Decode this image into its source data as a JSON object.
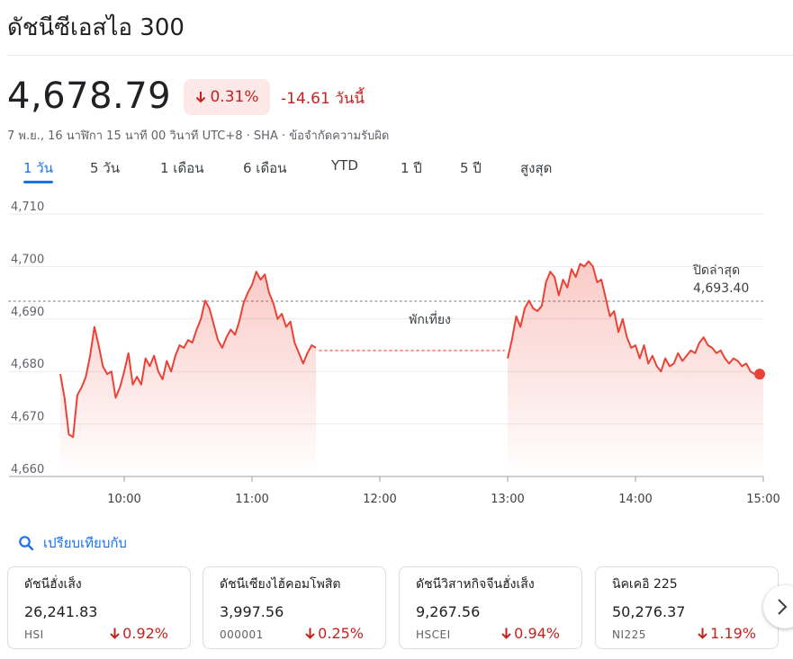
{
  "title": "ดัชนีซีเอสไอ 300",
  "quote": {
    "price": "4,678.79",
    "pct": "0.31%",
    "change": "-14.61 วันนี้",
    "meta": "7 พ.ย., 16 นาฬิกา 15 นาที 00 วินาที UTC+8 · SHA · ข้อจำกัดความรับผิด",
    "down_color": "#c5221f"
  },
  "tabs": [
    {
      "label": "1 วัน",
      "active": true
    },
    {
      "label": "5 วัน"
    },
    {
      "label": "1 เดือน"
    },
    {
      "label": "6 เดือน"
    },
    {
      "label": "YTD"
    },
    {
      "label": "1 ปี"
    },
    {
      "label": "5 ปี"
    },
    {
      "label": "สูงสุด"
    }
  ],
  "chart_data": {
    "type": "line",
    "ylim": [
      4660,
      4710
    ],
    "y_ticks": [
      "4,710",
      "4,700",
      "4,690",
      "4,680",
      "4,670",
      "4,660"
    ],
    "x_ticks": [
      "10:00",
      "11:00",
      "12:00",
      "13:00",
      "14:00",
      "15:00"
    ],
    "x_range": [
      "09:30",
      "15:00"
    ],
    "grid": true,
    "line_color": "#ea4335",
    "previous_close": {
      "label": "ปิดล่าสุด",
      "value_label": "4,693.40",
      "value": 4693.4
    },
    "lunch_break": {
      "label": "พักเที่ยง",
      "from": "11:30",
      "to": "13:00",
      "level": 4684.0
    },
    "series": [
      {
        "name": "ซีเอสไอ 300",
        "points": [
          [
            "09:30",
            4679.5
          ],
          [
            "09:32",
            4675.0
          ],
          [
            "09:34",
            4668.0
          ],
          [
            "09:36",
            4667.5
          ],
          [
            "09:38",
            4675.5
          ],
          [
            "09:40",
            4677.0
          ],
          [
            "09:42",
            4679.0
          ],
          [
            "09:44",
            4683.0
          ],
          [
            "09:46",
            4688.5
          ],
          [
            "09:48",
            4685.0
          ],
          [
            "09:50",
            4681.0
          ],
          [
            "09:52",
            4679.5
          ],
          [
            "09:54",
            4680.0
          ],
          [
            "09:56",
            4675.0
          ],
          [
            "09:58",
            4677.0
          ],
          [
            "10:00",
            4680.0
          ],
          [
            "10:02",
            4683.5
          ],
          [
            "10:04",
            4677.5
          ],
          [
            "10:06",
            4679.0
          ],
          [
            "10:08",
            4677.5
          ],
          [
            "10:10",
            4682.5
          ],
          [
            "10:12",
            4681.0
          ],
          [
            "10:14",
            4683.0
          ],
          [
            "10:16",
            4680.0
          ],
          [
            "10:18",
            4678.5
          ],
          [
            "10:20",
            4682.0
          ],
          [
            "10:22",
            4680.0
          ],
          [
            "10:24",
            4683.0
          ],
          [
            "10:26",
            4685.0
          ],
          [
            "10:28",
            4684.5
          ],
          [
            "10:30",
            4686.0
          ],
          [
            "10:32",
            4685.5
          ],
          [
            "10:34",
            4688.0
          ],
          [
            "10:36",
            4690.0
          ],
          [
            "10:38",
            4693.5
          ],
          [
            "10:40",
            4692.0
          ],
          [
            "10:42",
            4689.0
          ],
          [
            "10:44",
            4686.0
          ],
          [
            "10:46",
            4684.5
          ],
          [
            "10:48",
            4686.5
          ],
          [
            "10:50",
            4688.0
          ],
          [
            "10:52",
            4687.0
          ],
          [
            "10:54",
            4689.5
          ],
          [
            "10:56",
            4693.0
          ],
          [
            "10:58",
            4695.0
          ],
          [
            "11:00",
            4696.5
          ],
          [
            "11:02",
            4699.0
          ],
          [
            "11:04",
            4697.5
          ],
          [
            "11:06",
            4698.5
          ],
          [
            "11:08",
            4695.0
          ],
          [
            "11:10",
            4693.0
          ],
          [
            "11:12",
            4690.0
          ],
          [
            "11:14",
            4691.0
          ],
          [
            "11:16",
            4688.5
          ],
          [
            "11:18",
            4689.5
          ],
          [
            "11:20",
            4685.5
          ],
          [
            "11:22",
            4683.5
          ],
          [
            "11:24",
            4681.5
          ],
          [
            "11:26",
            4683.5
          ],
          [
            "11:28",
            4685.0
          ],
          [
            "11:30",
            4684.5
          ],
          [
            "13:00",
            4682.5
          ],
          [
            "13:02",
            4686.0
          ],
          [
            "13:04",
            4690.5
          ],
          [
            "13:06",
            4688.5
          ],
          [
            "13:08",
            4692.0
          ],
          [
            "13:10",
            4693.5
          ],
          [
            "13:12",
            4692.0
          ],
          [
            "13:14",
            4691.5
          ],
          [
            "13:16",
            4692.5
          ],
          [
            "13:18",
            4697.0
          ],
          [
            "13:20",
            4699.0
          ],
          [
            "13:22",
            4698.0
          ],
          [
            "13:24",
            4694.5
          ],
          [
            "13:26",
            4697.5
          ],
          [
            "13:28",
            4696.0
          ],
          [
            "13:30",
            4699.5
          ],
          [
            "13:32",
            4698.0
          ],
          [
            "13:34",
            4700.5
          ],
          [
            "13:36",
            4700.0
          ],
          [
            "13:38",
            4701.0
          ],
          [
            "13:40",
            4700.0
          ],
          [
            "13:42",
            4697.0
          ],
          [
            "13:44",
            4697.5
          ],
          [
            "13:46",
            4694.0
          ],
          [
            "13:48",
            4690.5
          ],
          [
            "13:50",
            4691.5
          ],
          [
            "13:52",
            4687.5
          ],
          [
            "13:54",
            4690.0
          ],
          [
            "13:56",
            4686.5
          ],
          [
            "13:58",
            4684.5
          ],
          [
            "14:00",
            4685.0
          ],
          [
            "14:02",
            4682.5
          ],
          [
            "14:04",
            4685.0
          ],
          [
            "14:06",
            4681.5
          ],
          [
            "14:08",
            4683.0
          ],
          [
            "14:10",
            4681.0
          ],
          [
            "14:12",
            4680.0
          ],
          [
            "14:14",
            4682.5
          ],
          [
            "14:16",
            4681.0
          ],
          [
            "14:18",
            4681.5
          ],
          [
            "14:20",
            4683.5
          ],
          [
            "14:22",
            4682.0
          ],
          [
            "14:24",
            4683.0
          ],
          [
            "14:26",
            4684.0
          ],
          [
            "14:28",
            4683.5
          ],
          [
            "14:30",
            4685.5
          ],
          [
            "14:32",
            4686.5
          ],
          [
            "14:34",
            4685.0
          ],
          [
            "14:36",
            4684.5
          ],
          [
            "14:38",
            4683.5
          ],
          [
            "14:40",
            4684.0
          ],
          [
            "14:42",
            4682.5
          ],
          [
            "14:44",
            4681.5
          ],
          [
            "14:46",
            4682.5
          ],
          [
            "14:48",
            4682.0
          ],
          [
            "14:50",
            4681.0
          ],
          [
            "14:52",
            4681.5
          ],
          [
            "14:54",
            4680.0
          ],
          [
            "14:56",
            4679.5
          ],
          [
            "14:58",
            4680.0
          ],
          [
            "15:00",
            4679.5
          ]
        ]
      }
    ]
  },
  "compare": {
    "label": "เปรียบเทียบกับ",
    "icon": "search-icon",
    "color": "#1a73e8"
  },
  "cards": [
    {
      "name": "ดัชนีฮั่งเส็ง",
      "value": "26,241.83",
      "symbol": "HSI",
      "pct": "0.92%"
    },
    {
      "name": "ดัชนีเซียงไฮ้คอมโพสิต",
      "value": "3,997.56",
      "symbol": "000001",
      "pct": "0.25%"
    },
    {
      "name": "ดัชนีวิสาหกิจจีนฮั่งเส็ง",
      "value": "9,267.56",
      "symbol": "HSCEI",
      "pct": "0.94%"
    },
    {
      "name": "นิคเคอิ 225",
      "value": "50,276.37",
      "symbol": "NI225",
      "pct": "1.19%"
    }
  ],
  "next_icon": "chevron-right-icon"
}
